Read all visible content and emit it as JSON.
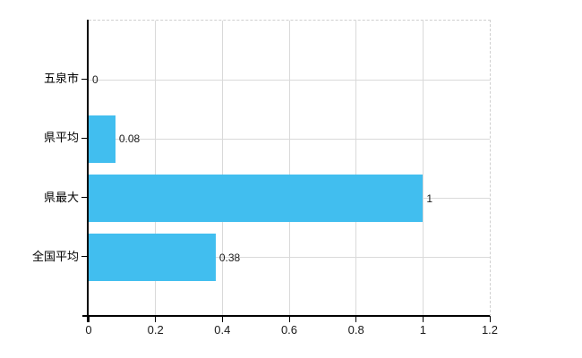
{
  "chart_data": {
    "type": "bar",
    "orientation": "horizontal",
    "title": "",
    "xlabel": "",
    "ylabel": "",
    "categories": [
      "五泉市",
      "県平均",
      "県最大",
      "全国平均"
    ],
    "values": [
      0,
      0.08,
      1,
      0.38
    ],
    "value_labels": [
      "0",
      "0.08",
      "1",
      "0.38"
    ],
    "x_ticks": [
      0,
      0.2,
      0.4,
      0.6,
      0.8,
      1,
      1.2
    ],
    "x_tick_labels": [
      "0",
      "0.2",
      "0.4",
      "0.6",
      "0.8",
      "1",
      "1.2"
    ],
    "xlim": [
      0,
      1.2
    ],
    "grid": true,
    "legend": false,
    "bar_color": "#41beef",
    "grid_color": "#d9d9d9",
    "axis_color": "#000000",
    "label_color": "#1a1a1a"
  }
}
